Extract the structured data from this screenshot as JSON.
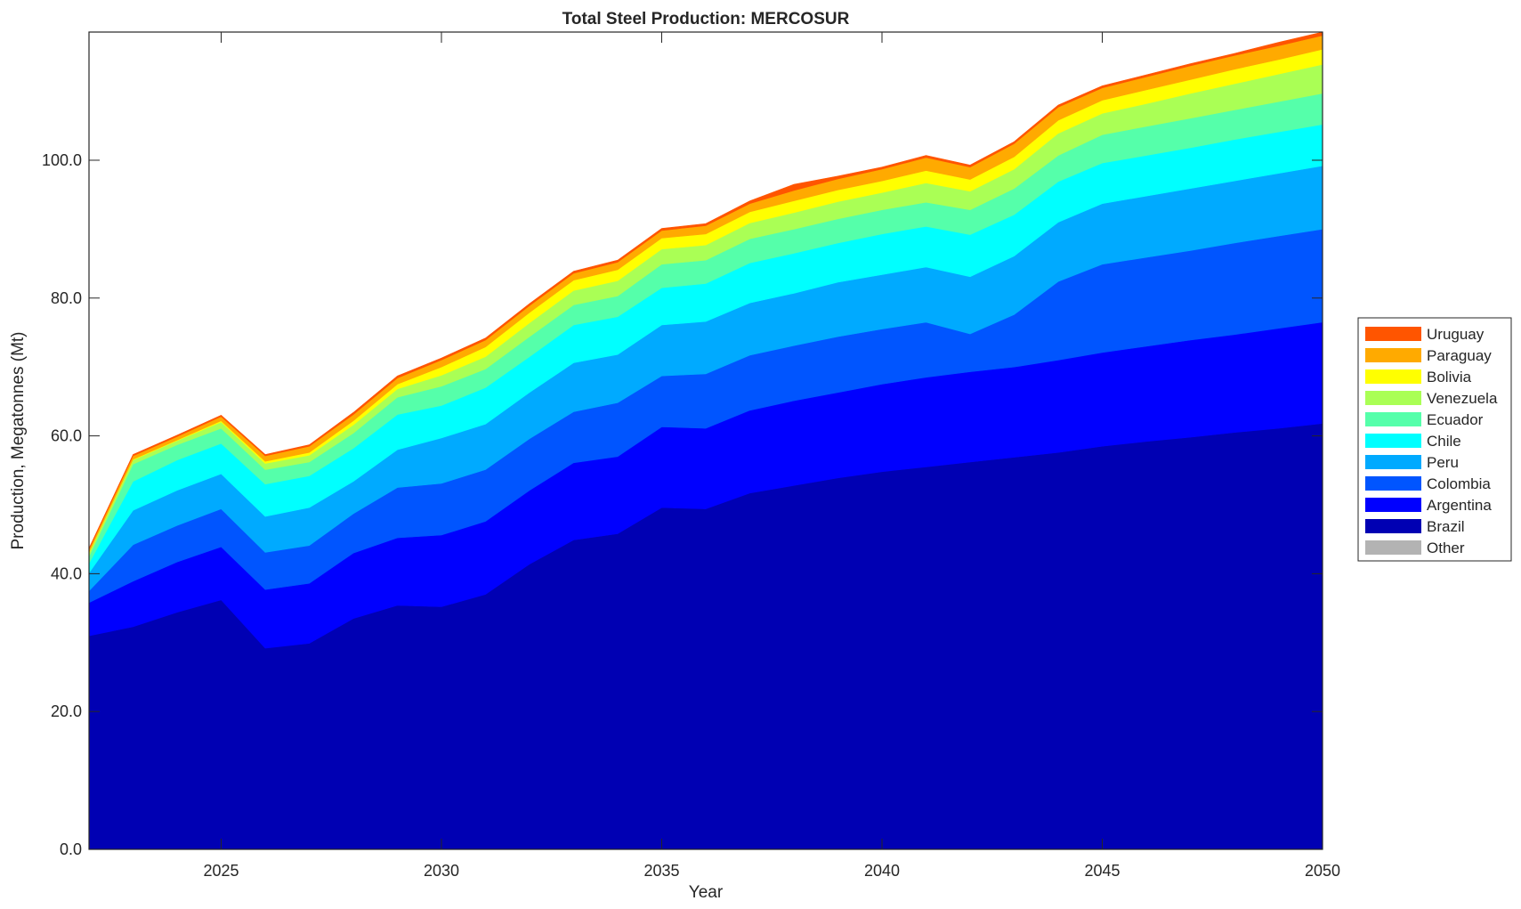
{
  "chart_data": {
    "type": "area",
    "stacked": true,
    "title": "Total Steel Production: MERCOSUR",
    "xlabel": "Year",
    "ylabel": "Production, Megatonnes (Mt)",
    "xlim": [
      2022,
      2050
    ],
    "ylim": [
      0,
      118.6
    ],
    "xticks": [
      "2025",
      "2030",
      "2035",
      "2040",
      "2045",
      "2050"
    ],
    "yticks": [
      "0.0",
      "20.0",
      "40.0",
      "60.0",
      "80.0",
      "100.0"
    ],
    "legend_position": "outside-right",
    "x": [
      2022,
      2023,
      2024,
      2025,
      2026,
      2027,
      2028,
      2029,
      2030,
      2031,
      2032,
      2033,
      2034,
      2035,
      2036,
      2037,
      2038,
      2039,
      2040,
      2041,
      2042,
      2043,
      2044,
      2045,
      2046,
      2047,
      2048,
      2049,
      2050
    ],
    "series": [
      {
        "name": "Other",
        "color": "#b3b3b3",
        "values": [
          0,
          0,
          0,
          0,
          0,
          0,
          0,
          0,
          0,
          0,
          0,
          0,
          0,
          0,
          0,
          0,
          0,
          0,
          0,
          0,
          0,
          0,
          0,
          0,
          0,
          0,
          0,
          0,
          0
        ]
      },
      {
        "name": "Brazil",
        "color": "#0000b3",
        "values": [
          31.0,
          32.3,
          34.4,
          36.2,
          29.2,
          29.9,
          33.5,
          35.4,
          35.2,
          37.0,
          41.4,
          44.9,
          45.8,
          49.6,
          49.4,
          51.7,
          52.8,
          53.9,
          54.8,
          55.5,
          56.2,
          56.9,
          57.6,
          58.5,
          59.2,
          59.8,
          60.5,
          61.1,
          61.8
        ]
      },
      {
        "name": "Argentina",
        "color": "#0000ff",
        "values": [
          4.8,
          6.6,
          7.3,
          7.7,
          8.5,
          8.7,
          9.5,
          9.8,
          10.4,
          10.6,
          10.7,
          11.2,
          11.2,
          11.7,
          11.7,
          12.0,
          12.3,
          12.4,
          12.7,
          13.0,
          13.1,
          13.1,
          13.4,
          13.6,
          13.8,
          14.1,
          14.2,
          14.5,
          14.7
        ]
      },
      {
        "name": "Colombia",
        "color": "#0055ff",
        "values": [
          1.7,
          5.3,
          5.3,
          5.5,
          5.4,
          5.5,
          5.7,
          7.3,
          7.5,
          7.5,
          7.5,
          7.4,
          7.8,
          7.4,
          7.9,
          8.0,
          8.0,
          8.1,
          8.0,
          8.0,
          5.5,
          7.6,
          11.4,
          12.8,
          12.9,
          13.0,
          13.3,
          13.4,
          13.5
        ]
      },
      {
        "name": "Peru",
        "color": "#00aaff",
        "values": [
          2.6,
          5.0,
          5.1,
          5.1,
          5.2,
          5.5,
          4.7,
          5.5,
          6.6,
          6.6,
          6.7,
          7.1,
          7.0,
          7.4,
          7.6,
          7.6,
          7.6,
          7.9,
          7.9,
          8.0,
          8.3,
          8.5,
          8.6,
          8.8,
          8.9,
          9.0,
          9.0,
          9.1,
          9.2
        ]
      },
      {
        "name": "Chile",
        "color": "#00ffff",
        "values": [
          1.4,
          4.2,
          4.4,
          4.4,
          4.7,
          4.6,
          4.8,
          5.1,
          4.7,
          5.3,
          5.2,
          5.5,
          5.5,
          5.4,
          5.5,
          5.8,
          5.8,
          5.7,
          5.9,
          5.9,
          6.1,
          6.0,
          5.9,
          5.9,
          5.9,
          5.9,
          6.0,
          6.0,
          6.0
        ]
      },
      {
        "name": "Ecuador",
        "color": "#55ffaa",
        "values": [
          1.0,
          2.5,
          2.2,
          2.2,
          2.1,
          2.0,
          2.2,
          2.5,
          2.8,
          2.7,
          2.9,
          2.9,
          3.0,
          3.4,
          3.4,
          3.5,
          3.5,
          3.5,
          3.5,
          3.5,
          3.6,
          3.8,
          3.8,
          4.1,
          4.2,
          4.3,
          4.3,
          4.4,
          4.5
        ]
      },
      {
        "name": "Venezuela",
        "color": "#aaff55",
        "values": [
          0.5,
          0.6,
          0.6,
          0.9,
          0.9,
          1.0,
          1.2,
          1.2,
          1.6,
          1.8,
          2.0,
          2.1,
          2.2,
          2.2,
          2.2,
          2.3,
          2.4,
          2.5,
          2.5,
          2.8,
          2.7,
          2.8,
          3.2,
          3.1,
          3.3,
          3.6,
          3.8,
          4.0,
          4.2
        ]
      },
      {
        "name": "Bolivia",
        "color": "#ffff00",
        "values": [
          0.1,
          0.1,
          0.1,
          0.2,
          0.3,
          0.4,
          0.6,
          0.7,
          1.2,
          1.4,
          1.5,
          1.5,
          1.6,
          1.6,
          1.6,
          1.6,
          1.7,
          1.7,
          1.7,
          1.8,
          1.7,
          1.8,
          1.9,
          1.9,
          2.0,
          2.0,
          2.1,
          2.1,
          2.2
        ]
      },
      {
        "name": "Paraguay",
        "color": "#ffaa00",
        "values": [
          0.4,
          0.5,
          0.5,
          0.6,
          0.8,
          0.9,
          0.9,
          0.9,
          1.0,
          1.0,
          1.0,
          1.0,
          1.1,
          1.1,
          1.2,
          1.2,
          1.5,
          1.6,
          1.7,
          1.9,
          1.8,
          1.9,
          1.9,
          1.8,
          1.9,
          2.0,
          2.0,
          2.0,
          2.0
        ]
      },
      {
        "name": "Uruguay",
        "color": "#ff5500",
        "values": [
          0.2,
          0.2,
          0.2,
          0.2,
          0.2,
          0.2,
          0.3,
          0.3,
          0.3,
          0.3,
          0.3,
          0.3,
          0.3,
          0.3,
          0.3,
          0.4,
          0.9,
          0.4,
          0.3,
          0.3,
          0.3,
          0.3,
          0.3,
          0.3,
          0.3,
          0.3,
          0.3,
          0.5,
          0.5
        ]
      }
    ],
    "legend_order": [
      "Uruguay",
      "Paraguay",
      "Bolivia",
      "Venezuela",
      "Ecuador",
      "Chile",
      "Peru",
      "Colombia",
      "Argentina",
      "Brazil",
      "Other"
    ]
  }
}
